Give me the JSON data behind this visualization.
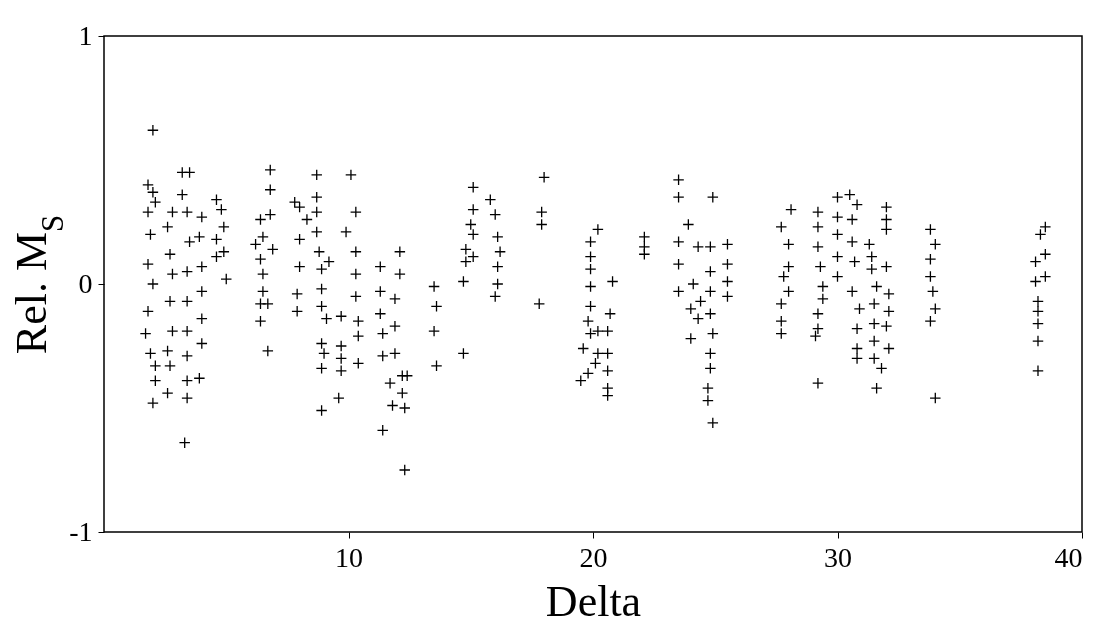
{
  "chart_data": {
    "type": "scatter",
    "xlabel": "Delta",
    "ylabel": "Rel. M$_{S}$",
    "xlim": [
      0,
      40
    ],
    "xticks": [
      10,
      20,
      30,
      40
    ],
    "ylim": [
      -1,
      1
    ],
    "yticks": [
      -1,
      0,
      1
    ],
    "grid": false,
    "marker": "cross",
    "series": [
      {
        "color": "#000000",
        "x": [
          2.0,
          1.8,
          2.0,
          2.1,
          1.8,
          1.9,
          1.8,
          2.0,
          1.8,
          1.7,
          1.9,
          2.1,
          2.1,
          2.0,
          2.8,
          2.6,
          2.7,
          2.8,
          2.7,
          2.8,
          2.6,
          2.7,
          2.6,
          3.2,
          3.5,
          3.2,
          3.4,
          3.5,
          3.4,
          3.4,
          3.4,
          3.4,
          3.4,
          3.4,
          3.3,
          4.0,
          3.9,
          4.0,
          4.0,
          4.0,
          4.0,
          3.9,
          4.6,
          4.8,
          4.9,
          4.6,
          4.9,
          4.6,
          5.0,
          6.8,
          6.8,
          6.8,
          6.4,
          6.5,
          6.2,
          6.4,
          6.9,
          6.5,
          6.5,
          6.4,
          6.7,
          6.4,
          6.7,
          7.8,
          8.0,
          8.3,
          8.0,
          8.0,
          7.9,
          7.9,
          8.7,
          8.7,
          8.7,
          8.7,
          8.8,
          8.9,
          8.9,
          8.9,
          9.1,
          8.9,
          9.0,
          8.9,
          8.9,
          9.2,
          9.7,
          9.7,
          9.7,
          9.7,
          9.6,
          10.1,
          10.3,
          9.9,
          10.3,
          10.3,
          10.3,
          10.4,
          10.4,
          10.4,
          11.3,
          11.3,
          11.3,
          11.4,
          11.4,
          11.4,
          12.1,
          12.1,
          11.9,
          11.9,
          11.9,
          11.7,
          11.8,
          12.2,
          12.2,
          12.3,
          12.4,
          12.3,
          13.5,
          13.6,
          13.5,
          13.6,
          14.8,
          14.8,
          14.7,
          14.7,
          15.1,
          15.1,
          15.0,
          15.1,
          15.1,
          15.8,
          16.0,
          16.1,
          16.2,
          16.1,
          16.1,
          16.0,
          18.0,
          17.9,
          17.9,
          17.8,
          20.2,
          19.9,
          19.9,
          19.9,
          19.9,
          19.9,
          19.8,
          19.9,
          19.6,
          19.5,
          19.8,
          20.1,
          20.2,
          20.2,
          20.8,
          20.7,
          20.6,
          20.6,
          20.6,
          20.6,
          20.6,
          22.1,
          22.1,
          22.1,
          23.5,
          23.5,
          23.9,
          23.5,
          23.5,
          23.5,
          24.3,
          24.1,
          24.0,
          24.0,
          24.3,
          24.4,
          24.9,
          24.8,
          24.8,
          24.8,
          24.8,
          24.9,
          24.8,
          24.8,
          24.7,
          24.7,
          24.9,
          25.5,
          25.5,
          25.5,
          25.5,
          27.7,
          27.8,
          27.7,
          27.7,
          27.7,
          28.1,
          28.0,
          28.0,
          28.0,
          29.2,
          29.2,
          29.2,
          29.3,
          29.4,
          29.4,
          29.2,
          29.2,
          29.1,
          29.2,
          30.0,
          30.0,
          30.0,
          30.0,
          30.0,
          30.5,
          30.8,
          30.6,
          30.6,
          30.7,
          30.6,
          30.9,
          30.8,
          30.8,
          30.8,
          31.3,
          31.4,
          31.4,
          31.6,
          31.5,
          31.5,
          31.5,
          31.5,
          31.8,
          31.6,
          32.0,
          32.0,
          32.0,
          32.0,
          32.1,
          32.1,
          32.0,
          32.1,
          33.8,
          34.0,
          33.8,
          33.8,
          33.9,
          34.0,
          33.8,
          34.0,
          38.5,
          38.3,
          38.5,
          38.1,
          38.5,
          38.1,
          38.2,
          38.2,
          38.2,
          38.2,
          38.2
        ],
        "values": [
          0.62,
          0.4,
          0.37,
          0.33,
          0.29,
          0.2,
          0.08,
          0.0,
          -0.11,
          -0.2,
          -0.28,
          -0.33,
          -0.39,
          -0.48,
          0.29,
          0.23,
          0.12,
          0.04,
          -0.07,
          -0.19,
          -0.27,
          -0.33,
          -0.44,
          0.45,
          0.45,
          0.36,
          0.29,
          0.17,
          0.05,
          -0.07,
          -0.19,
          -0.29,
          -0.39,
          -0.46,
          -0.64,
          0.27,
          0.19,
          0.07,
          -0.03,
          -0.14,
          -0.24,
          -0.38,
          0.34,
          0.3,
          0.23,
          0.18,
          0.13,
          0.11,
          0.02,
          0.46,
          0.38,
          0.28,
          0.26,
          0.19,
          0.16,
          0.1,
          0.14,
          0.04,
          -0.03,
          -0.08,
          -0.08,
          -0.15,
          -0.27,
          0.33,
          0.31,
          0.26,
          0.18,
          0.07,
          -0.04,
          -0.11,
          0.44,
          0.35,
          0.29,
          0.21,
          0.13,
          0.06,
          -0.02,
          -0.09,
          -0.14,
          -0.24,
          -0.28,
          -0.34,
          -0.51,
          0.09,
          -0.13,
          -0.25,
          -0.3,
          -0.35,
          -0.46,
          0.44,
          0.29,
          0.21,
          0.13,
          0.04,
          -0.05,
          -0.15,
          -0.21,
          -0.32,
          0.07,
          -0.03,
          -0.12,
          -0.2,
          -0.29,
          -0.59,
          0.13,
          0.04,
          -0.06,
          -0.17,
          -0.28,
          -0.4,
          -0.49,
          -0.37,
          -0.44,
          -0.5,
          -0.37,
          -0.75,
          -0.01,
          -0.09,
          -0.19,
          -0.33,
          0.14,
          0.09,
          0.01,
          -0.28,
          0.39,
          0.3,
          0.24,
          0.2,
          0.11,
          0.34,
          0.28,
          0.19,
          0.13,
          0.07,
          0.0,
          -0.05,
          0.43,
          0.29,
          0.24,
          -0.08,
          0.22,
          0.17,
          0.11,
          0.06,
          -0.01,
          -0.09,
          -0.15,
          -0.2,
          -0.26,
          -0.39,
          -0.36,
          -0.32,
          -0.28,
          -0.19,
          0.01,
          -0.12,
          -0.19,
          -0.28,
          -0.35,
          -0.42,
          -0.45,
          0.19,
          0.15,
          0.12,
          0.42,
          0.35,
          0.24,
          0.17,
          0.08,
          -0.03,
          0.15,
          0.0,
          -0.1,
          -0.22,
          -0.14,
          -0.07,
          0.35,
          0.15,
          0.05,
          -0.03,
          -0.12,
          -0.2,
          -0.28,
          -0.34,
          -0.42,
          -0.47,
          -0.56,
          0.16,
          0.08,
          0.01,
          -0.05,
          0.23,
          0.03,
          -0.08,
          -0.15,
          -0.2,
          0.3,
          0.16,
          0.07,
          -0.03,
          0.29,
          0.23,
          0.15,
          0.07,
          -0.01,
          -0.06,
          -0.12,
          -0.18,
          -0.21,
          -0.4,
          0.35,
          0.27,
          0.2,
          0.11,
          0.03,
          0.36,
          0.32,
          0.26,
          0.17,
          0.09,
          -0.03,
          -0.1,
          -0.18,
          -0.26,
          -0.3,
          0.16,
          0.11,
          0.06,
          -0.01,
          -0.08,
          -0.16,
          -0.23,
          -0.3,
          -0.34,
          -0.42,
          0.31,
          0.26,
          0.22,
          0.07,
          -0.04,
          -0.11,
          -0.17,
          -0.26,
          0.22,
          0.16,
          0.1,
          0.03,
          -0.03,
          -0.1,
          -0.15,
          -0.46,
          0.23,
          0.2,
          0.12,
          0.09,
          0.03,
          0.01,
          -0.07,
          -0.11,
          -0.16,
          -0.23,
          -0.35
        ]
      }
    ]
  }
}
